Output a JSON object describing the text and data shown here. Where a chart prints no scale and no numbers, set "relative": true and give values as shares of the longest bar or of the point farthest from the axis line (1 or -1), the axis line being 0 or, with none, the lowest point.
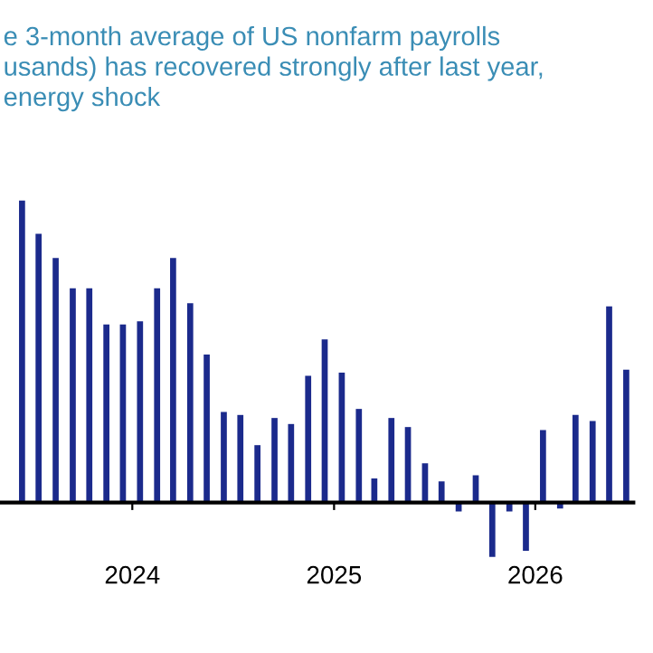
{
  "chart_data": {
    "type": "bar",
    "relative": true,
    "title": "e 3-month average of US nonfarm payrolls\nusands) has recovered strongly after last year,\nenergy shock",
    "x": [
      "2023-06-15",
      "2023-07-15",
      "2023-08-15",
      "2023-09-15",
      "2023-10-15",
      "2023-11-15",
      "2023-12-15",
      "2024-01-15",
      "2024-02-15",
      "2024-03-15",
      "2024-04-15",
      "2024-05-15",
      "2024-06-15",
      "2024-07-15",
      "2024-08-15",
      "2024-09-15",
      "2024-10-15",
      "2024-11-15",
      "2024-12-15",
      "2025-01-15",
      "2025-02-15",
      "2025-03-15",
      "2025-04-15",
      "2025-05-15",
      "2025-06-15",
      "2025-07-15",
      "2025-08-15",
      "2025-09-15",
      "2025-10-15",
      "2025-11-15",
      "2025-12-15",
      "2026-01-15",
      "2026-02-15",
      "2026-03-15",
      "2026-04-15",
      "2026-05-15",
      "2026-06-15"
    ],
    "values": [
      1.0,
      0.89,
      0.81,
      0.71,
      0.71,
      0.59,
      0.59,
      0.6,
      0.71,
      0.81,
      0.66,
      0.49,
      0.3,
      0.29,
      0.19,
      0.28,
      0.26,
      0.42,
      0.54,
      0.43,
      0.31,
      0.08,
      0.28,
      0.25,
      0.13,
      0.07,
      -0.03,
      0.09,
      -0.18,
      -0.03,
      -0.16,
      0.24,
      -0.02,
      0.29,
      0.27,
      0.65,
      0.44
    ],
    "color": "#1b2a8c",
    "xlim": [
      "2023-05-06",
      "2026-06-28"
    ],
    "xticks": [
      "2024",
      "2025",
      "2026"
    ],
    "tick_labels": "x",
    "grid": false
  }
}
